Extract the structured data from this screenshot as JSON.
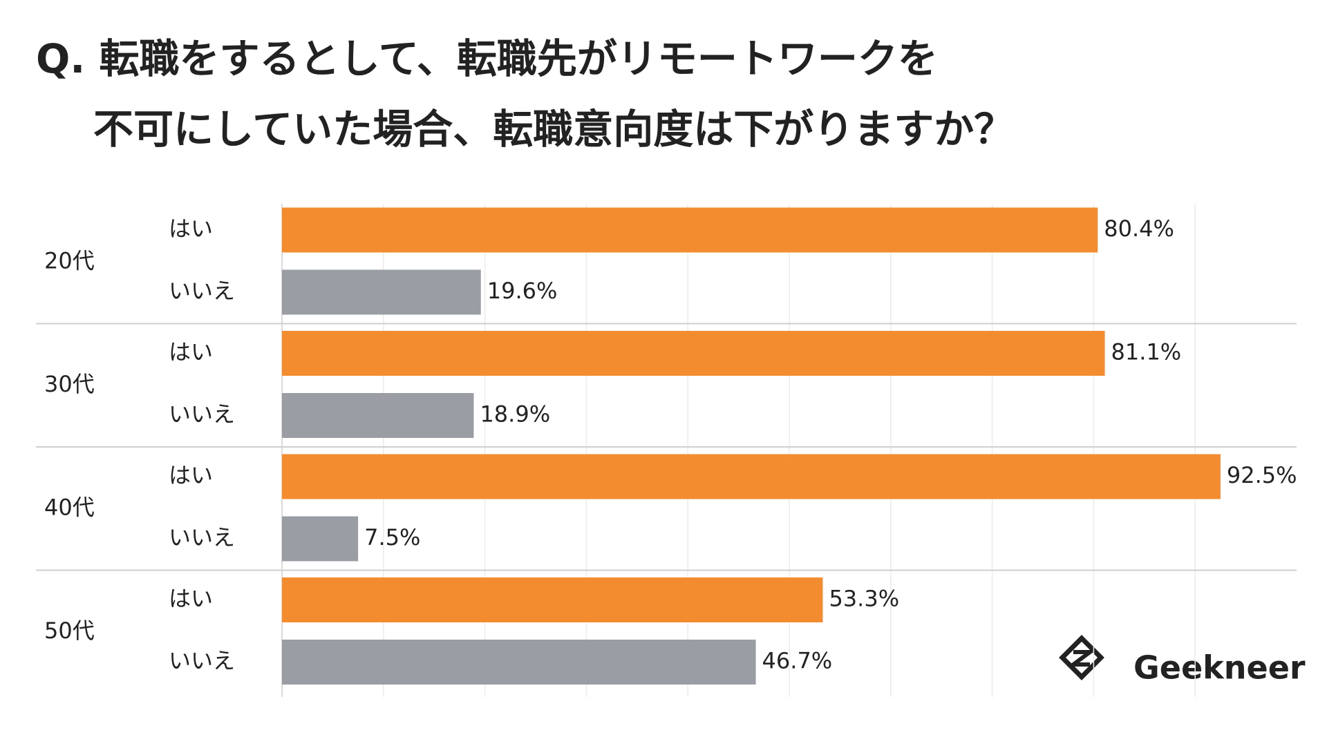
{
  "chart_data": {
    "type": "grouped-hbar",
    "title": [
      "Q. 転職をするとして、転職先がリモートワークを",
      "不可にしていた場合、転職意向度は下がりますか？"
    ],
    "categories": [
      "20代",
      "30代",
      "40代",
      "50代"
    ],
    "series": [
      {
        "name": "はい",
        "color": "#f28c2e",
        "values": [
          80.4,
          81.1,
          92.5,
          53.3
        ],
        "value_labels": [
          "80.4%",
          "81.1%",
          "92.5%",
          "53.3%"
        ]
      },
      {
        "name": "いいえ",
        "color": "#9a9da3",
        "values": [
          19.6,
          18.9,
          7.5,
          46.7
        ],
        "value_labels": [
          "19.6%",
          "18.9%",
          "7.5%",
          "46.7%"
        ]
      }
    ],
    "xlim": [
      0,
      100
    ],
    "xticks": [
      0,
      10,
      20,
      30,
      40,
      50,
      60,
      70,
      80,
      90
    ],
    "grid": true,
    "logo": "Geekneer"
  }
}
